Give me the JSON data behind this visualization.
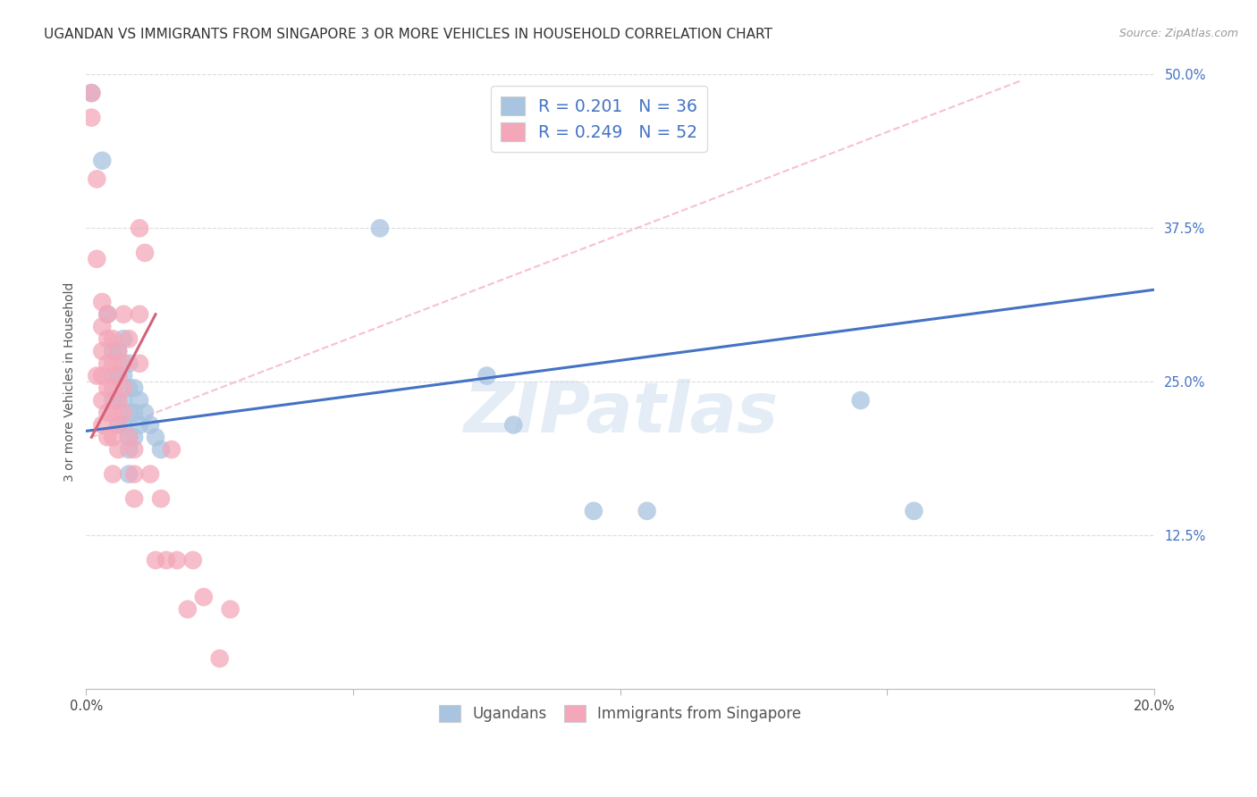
{
  "title": "UGANDAN VS IMMIGRANTS FROM SINGAPORE 3 OR MORE VEHICLES IN HOUSEHOLD CORRELATION CHART",
  "source": "Source: ZipAtlas.com",
  "ylabel": "3 or more Vehicles in Household",
  "xlim": [
    0.0,
    0.2
  ],
  "ylim": [
    0.0,
    0.5
  ],
  "xtick_positions": [
    0.0,
    0.05,
    0.1,
    0.15,
    0.2
  ],
  "xticklabels": [
    "0.0%",
    "",
    "",
    "",
    "20.0%"
  ],
  "ytick_positions": [
    0.0,
    0.125,
    0.25,
    0.375,
    0.5
  ],
  "yticklabels": [
    "",
    "12.5%",
    "25.0%",
    "37.5%",
    "50.0%"
  ],
  "legend_blue_label": "R = 0.201   N = 36",
  "legend_pink_label": "R = 0.249   N = 52",
  "legend_bottom_blue": "Ugandans",
  "legend_bottom_pink": "Immigrants from Singapore",
  "watermark": "ZIPatlas",
  "blue_color": "#a8c4e0",
  "pink_color": "#f4a7b9",
  "blue_line_color": "#4472c4",
  "pink_line_color": "#d4627a",
  "grid_color": "#d8d8d8",
  "background_color": "#ffffff",
  "title_fontsize": 11,
  "axis_label_fontsize": 10,
  "tick_fontsize": 10.5,
  "source_fontsize": 9,
  "blue_scatter": [
    [
      0.001,
      0.485
    ],
    [
      0.003,
      0.43
    ],
    [
      0.004,
      0.305
    ],
    [
      0.005,
      0.275
    ],
    [
      0.005,
      0.255
    ],
    [
      0.005,
      0.235
    ],
    [
      0.006,
      0.275
    ],
    [
      0.006,
      0.255
    ],
    [
      0.006,
      0.235
    ],
    [
      0.006,
      0.215
    ],
    [
      0.007,
      0.285
    ],
    [
      0.007,
      0.255
    ],
    [
      0.007,
      0.235
    ],
    [
      0.007,
      0.215
    ],
    [
      0.008,
      0.265
    ],
    [
      0.008,
      0.245
    ],
    [
      0.008,
      0.225
    ],
    [
      0.008,
      0.205
    ],
    [
      0.008,
      0.195
    ],
    [
      0.008,
      0.175
    ],
    [
      0.009,
      0.245
    ],
    [
      0.009,
      0.225
    ],
    [
      0.009,
      0.205
    ],
    [
      0.01,
      0.235
    ],
    [
      0.01,
      0.215
    ],
    [
      0.011,
      0.225
    ],
    [
      0.012,
      0.215
    ],
    [
      0.013,
      0.205
    ],
    [
      0.014,
      0.195
    ],
    [
      0.055,
      0.375
    ],
    [
      0.075,
      0.255
    ],
    [
      0.08,
      0.215
    ],
    [
      0.095,
      0.145
    ],
    [
      0.105,
      0.145
    ],
    [
      0.145,
      0.235
    ],
    [
      0.155,
      0.145
    ]
  ],
  "pink_scatter": [
    [
      0.001,
      0.485
    ],
    [
      0.001,
      0.465
    ],
    [
      0.002,
      0.415
    ],
    [
      0.002,
      0.35
    ],
    [
      0.002,
      0.255
    ],
    [
      0.003,
      0.315
    ],
    [
      0.003,
      0.295
    ],
    [
      0.003,
      0.275
    ],
    [
      0.003,
      0.255
    ],
    [
      0.003,
      0.235
    ],
    [
      0.003,
      0.215
    ],
    [
      0.004,
      0.305
    ],
    [
      0.004,
      0.285
    ],
    [
      0.004,
      0.265
    ],
    [
      0.004,
      0.245
    ],
    [
      0.004,
      0.225
    ],
    [
      0.004,
      0.205
    ],
    [
      0.005,
      0.285
    ],
    [
      0.005,
      0.265
    ],
    [
      0.005,
      0.245
    ],
    [
      0.005,
      0.225
    ],
    [
      0.005,
      0.205
    ],
    [
      0.005,
      0.175
    ],
    [
      0.006,
      0.275
    ],
    [
      0.006,
      0.255
    ],
    [
      0.006,
      0.235
    ],
    [
      0.006,
      0.215
    ],
    [
      0.006,
      0.195
    ],
    [
      0.007,
      0.305
    ],
    [
      0.007,
      0.265
    ],
    [
      0.007,
      0.245
    ],
    [
      0.007,
      0.225
    ],
    [
      0.008,
      0.285
    ],
    [
      0.008,
      0.205
    ],
    [
      0.009,
      0.195
    ],
    [
      0.009,
      0.175
    ],
    [
      0.009,
      0.155
    ],
    [
      0.01,
      0.375
    ],
    [
      0.01,
      0.305
    ],
    [
      0.011,
      0.355
    ],
    [
      0.012,
      0.175
    ],
    [
      0.013,
      0.105
    ],
    [
      0.014,
      0.155
    ],
    [
      0.015,
      0.105
    ],
    [
      0.016,
      0.195
    ],
    [
      0.017,
      0.105
    ],
    [
      0.019,
      0.065
    ],
    [
      0.02,
      0.105
    ],
    [
      0.022,
      0.075
    ],
    [
      0.025,
      0.025
    ],
    [
      0.027,
      0.065
    ],
    [
      0.01,
      0.265
    ]
  ],
  "blue_line": [
    [
      0.0,
      0.21
    ],
    [
      0.2,
      0.325
    ]
  ],
  "pink_line": [
    [
      0.001,
      0.205
    ],
    [
      0.013,
      0.305
    ]
  ],
  "pink_dashed_line": [
    [
      0.001,
      0.205
    ],
    [
      0.175,
      0.495
    ]
  ]
}
